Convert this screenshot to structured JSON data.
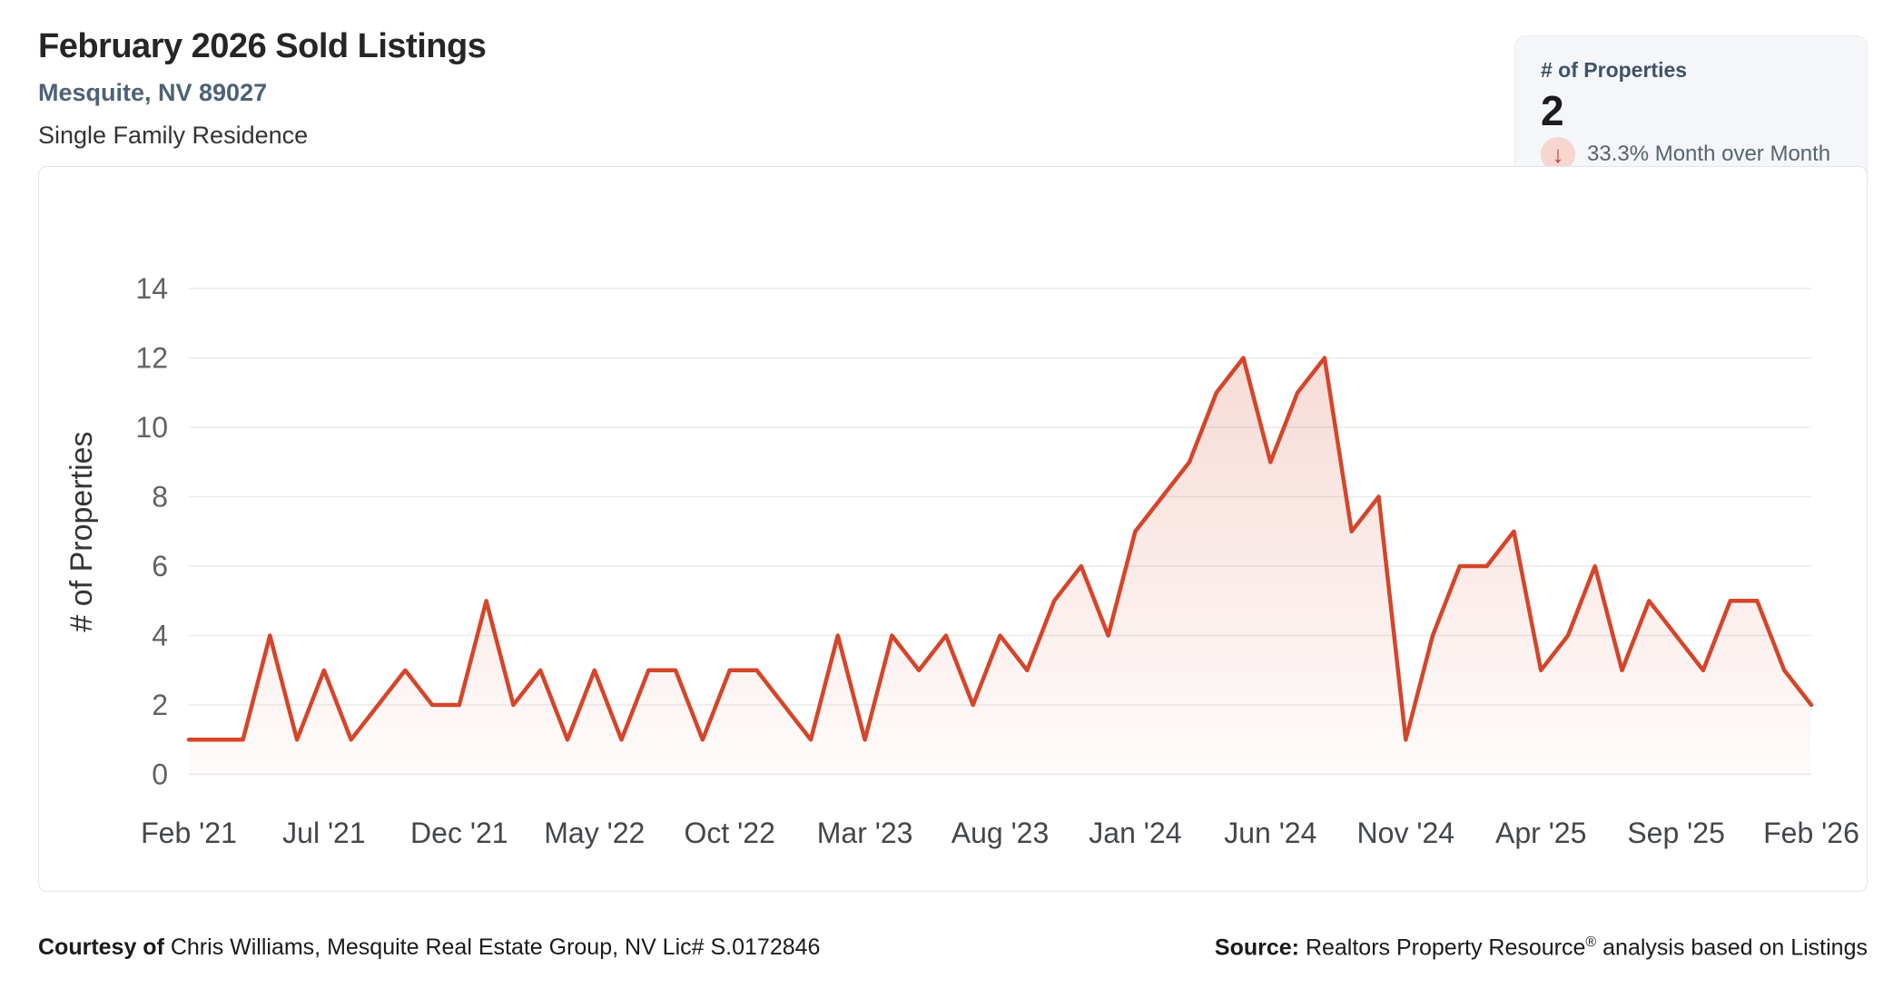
{
  "header": {
    "title": "February 2026 Sold Listings",
    "location": "Mesquite, NV 89027",
    "property_type": "Single Family Residence"
  },
  "stats_card": {
    "label": "# of Properties",
    "value": "2",
    "trend_direction": "down",
    "trend_icon_glyph": "↓",
    "trend_text": "33.3% Month over Month",
    "trend_arrow_color": "#bf3f2b",
    "trend_circle_color": "#f6d6ce"
  },
  "chart_data": {
    "type": "area",
    "title": "",
    "ylabel": "# of Properties",
    "ylim": [
      0,
      14
    ],
    "yticks": [
      0,
      2,
      4,
      6,
      8,
      10,
      12,
      14
    ],
    "grid": true,
    "legend": "none",
    "line_color": "#d5452a",
    "categories": [
      "Feb '21",
      "Mar '21",
      "Apr '21",
      "May '21",
      "Jun '21",
      "Jul '21",
      "Aug '21",
      "Sep '21",
      "Oct '21",
      "Nov '21",
      "Dec '21",
      "Jan '22",
      "Feb '22",
      "Mar '22",
      "Apr '22",
      "May '22",
      "Jun '22",
      "Jul '22",
      "Aug '22",
      "Sep '22",
      "Oct '22",
      "Nov '22",
      "Dec '22",
      "Jan '23",
      "Feb '23",
      "Mar '23",
      "Apr '23",
      "May '23",
      "Jun '23",
      "Jul '23",
      "Aug '23",
      "Sep '23",
      "Oct '23",
      "Nov '23",
      "Dec '23",
      "Jan '24",
      "Feb '24",
      "Mar '24",
      "Apr '24",
      "May '24",
      "Jun '24",
      "Jul '24",
      "Aug '24",
      "Sep '24",
      "Oct '24",
      "Nov '24",
      "Dec '24",
      "Jan '25",
      "Feb '25",
      "Mar '25",
      "Apr '25",
      "May '25",
      "Jun '25",
      "Jul '25",
      "Aug '25",
      "Sep '25",
      "Oct '25",
      "Nov '25",
      "Dec '25",
      "Jan '26",
      "Feb '26"
    ],
    "values": [
      1,
      1,
      1,
      4,
      1,
      3,
      1,
      2,
      3,
      2,
      2,
      5,
      2,
      3,
      1,
      3,
      1,
      3,
      3,
      1,
      3,
      3,
      2,
      1,
      4,
      1,
      4,
      3,
      4,
      2,
      4,
      3,
      5,
      6,
      4,
      7,
      8,
      9,
      11,
      12,
      9,
      11,
      12,
      7,
      8,
      1,
      4,
      6,
      6,
      7,
      3,
      4,
      6,
      3,
      5,
      4,
      3,
      5,
      5,
      3,
      2
    ],
    "xtick_every": 5,
    "xtick_labels": [
      "Feb '21",
      "Jul '21",
      "Dec '21",
      "May '22",
      "Oct '22",
      "Mar '23",
      "Aug '23",
      "Jan '24",
      "Jun '24",
      "Nov '24",
      "Apr '25",
      "Sep '25",
      "Feb '26"
    ]
  },
  "footer": {
    "courtesy_prefix": "Courtesy of",
    "courtesy_rest": " Chris Williams, Mesquite Real Estate Group, NV Lic# S.0172846",
    "source_prefix": "Source:",
    "source_before_reg": " Realtors Property Resource",
    "source_reg": "®",
    "source_after_reg": " analysis based on Listings"
  }
}
